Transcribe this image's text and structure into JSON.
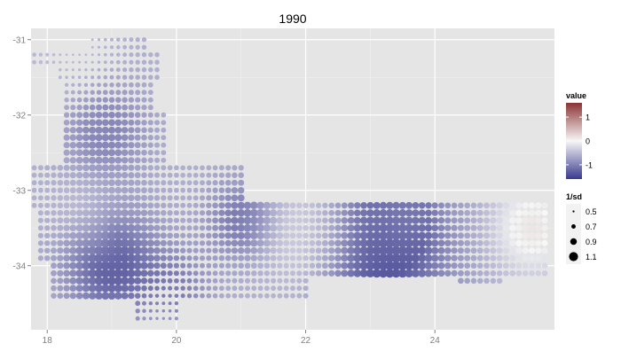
{
  "chart_data": {
    "type": "scatter",
    "title": "1990",
    "xlabel": "",
    "ylabel": "",
    "xlim": [
      17.75,
      25.85
    ],
    "ylim": [
      -34.85,
      -30.85
    ],
    "x_ticks": [
      18,
      20,
      22,
      24
    ],
    "y_ticks": [
      -31,
      -32,
      -33,
      -34
    ],
    "x_tick_labels": [
      "18",
      "20",
      "22",
      "24"
    ],
    "y_tick_labels": [
      "-31",
      "-32",
      "-33",
      "-34"
    ],
    "grid": true,
    "legend_position": "right",
    "grid_step": 0.1,
    "color_scale": {
      "title": "value",
      "low_color": "#3a3a8e",
      "mid_color": "#f7f7f7",
      "high_color": "#8b3333",
      "limits": [
        -1.6,
        1.6
      ],
      "ticks": [
        1,
        0,
        -1
      ],
      "tick_labels": [
        "1",
        "0",
        "-1"
      ]
    },
    "size_scale": {
      "title": "1/sd",
      "values": [
        0.5,
        0.7,
        0.9,
        1.1
      ],
      "labels": [
        "0.5",
        "0.7",
        "0.9",
        "1.1"
      ],
      "range": [
        0.45,
        1.15
      ]
    },
    "region": [
      {
        "x": [
          17.8,
          18.2
        ],
        "y": [
          -31.3,
          -31.15
        ]
      },
      {
        "x": [
          18.2,
          19.75
        ],
        "y": [
          -31.55,
          -31.15
        ]
      },
      {
        "x": [
          18.65,
          19.55
        ],
        "y": [
          -31.1,
          -31.0
        ]
      },
      {
        "x": [
          18.25,
          19.6
        ],
        "y": [
          -32.0,
          -31.55
        ]
      },
      {
        "x": [
          18.25,
          19.85
        ],
        "y": [
          -32.7,
          -32.0
        ]
      },
      {
        "x": [
          17.8,
          21.05
        ],
        "y": [
          -33.2,
          -32.7
        ]
      },
      {
        "x": [
          17.85,
          25.7
        ],
        "y": [
          -33.95,
          -33.2
        ]
      },
      {
        "x": [
          18.1,
          22.05
        ],
        "y": [
          -34.45,
          -33.95
        ]
      },
      {
        "x": [
          22.05,
          25.7
        ],
        "y": [
          -34.15,
          -33.95
        ]
      },
      {
        "x": [
          24.4,
          25.0
        ],
        "y": [
          -34.25,
          -34.15
        ]
      },
      {
        "x": [
          19.4,
          20.05
        ],
        "y": [
          -34.75,
          -34.45
        ]
      }
    ],
    "value_anchors": [
      {
        "x": 19.0,
        "y": -34.0,
        "value": -1.3,
        "reach": 0.7
      },
      {
        "x": 18.9,
        "y": -32.2,
        "value": -1.0,
        "reach": 0.6
      },
      {
        "x": 23.2,
        "y": -33.85,
        "value": -1.4,
        "reach": 1.0
      },
      {
        "x": 21.0,
        "y": -33.4,
        "value": -1.1,
        "reach": 0.5
      },
      {
        "x": 23.5,
        "y": -33.3,
        "value": -0.9,
        "reach": 0.5
      },
      {
        "x": 25.5,
        "y": -33.5,
        "value": 0.15,
        "reach": 0.6
      },
      {
        "x": 20.0,
        "y": -34.3,
        "value": -1.0,
        "reach": 0.5
      },
      {
        "x": 22.0,
        "y": -33.6,
        "value": -0.2,
        "reach": 0.7
      },
      {
        "x": 18.6,
        "y": -33.3,
        "value": -0.4,
        "reach": 0.5
      },
      {
        "x": 18.2,
        "y": -31.2,
        "value": -0.5,
        "reach": 0.8
      }
    ],
    "size_anchors": [
      {
        "x": 19.0,
        "y": -33.9,
        "value": 1.1,
        "reach": 0.8
      },
      {
        "x": 23.3,
        "y": -33.9,
        "value": 1.1,
        "reach": 0.9
      },
      {
        "x": 18.8,
        "y": -32.3,
        "value": 0.95,
        "reach": 0.7
      },
      {
        "x": 21.2,
        "y": -33.4,
        "value": 1.0,
        "reach": 0.6
      },
      {
        "x": 25.3,
        "y": -33.5,
        "value": 0.9,
        "reach": 0.8
      },
      {
        "x": 18.5,
        "y": -31.2,
        "value": 0.5,
        "reach": 0.6
      },
      {
        "x": 19.7,
        "y": -34.6,
        "value": 0.5,
        "reach": 0.4
      }
    ],
    "background_size": 0.75
  }
}
